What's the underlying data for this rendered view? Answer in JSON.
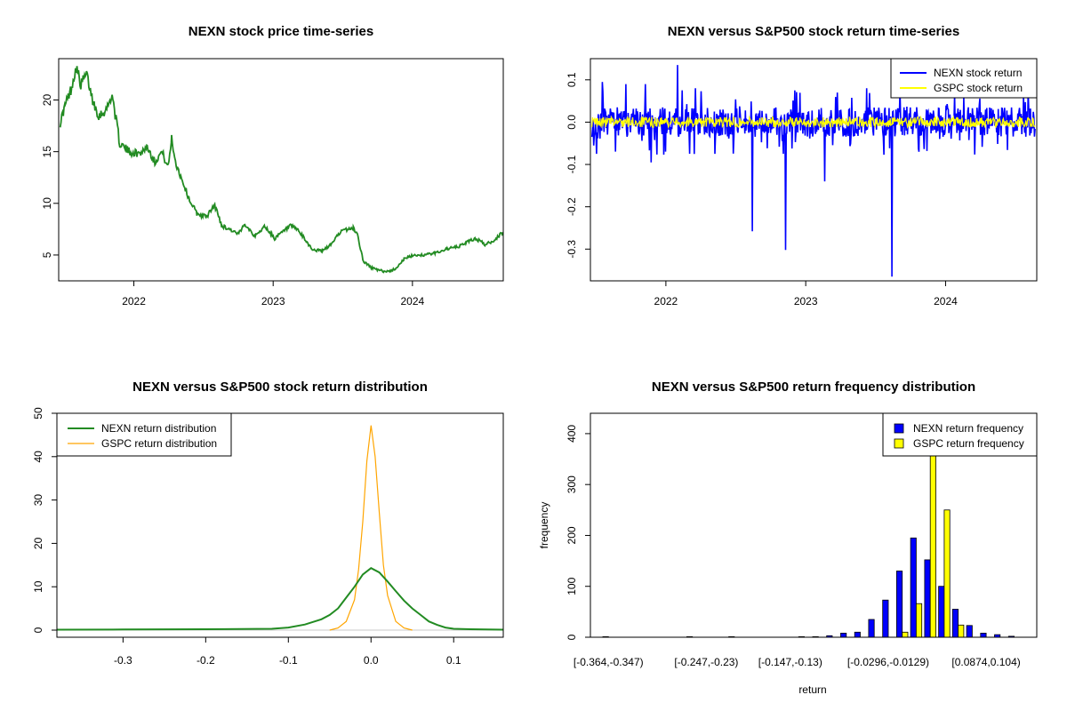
{
  "chart_data": [
    {
      "type": "line",
      "title": "NEXN stock price time-series",
      "xlabel": "",
      "ylabel": "",
      "x_range": [
        "2021-06-18",
        "2024-08-26"
      ],
      "ylim": [
        2.5,
        24
      ],
      "x_tick_labels": [
        "2022",
        "2023",
        "2024"
      ],
      "y_tick_labels": [
        "5",
        "10",
        "15",
        "20"
      ],
      "color": "#228b22",
      "series": [
        {
          "x": [
            "2021-06-22",
            "2021-07-05",
            "2021-07-20",
            "2021-08-03",
            "2021-08-15",
            "2021-08-30",
            "2021-09-15",
            "2021-10-01",
            "2021-10-20",
            "2021-11-05",
            "2021-11-25",
            "2021-12-20",
            "2022-01-15",
            "2022-02-05",
            "2022-02-25",
            "2022-03-15",
            "2022-04-01",
            "2022-04-10",
            "2022-04-20",
            "2022-05-10",
            "2022-05-25",
            "2022-06-15",
            "2022-07-10",
            "2022-08-01",
            "2022-08-20",
            "2022-09-10",
            "2022-10-01",
            "2022-10-20",
            "2022-11-15",
            "2022-12-10",
            "2023-01-05",
            "2023-01-25",
            "2023-02-15",
            "2023-03-05",
            "2023-03-25",
            "2023-04-15",
            "2023-05-10",
            "2023-06-01",
            "2023-06-25",
            "2023-07-15",
            "2023-07-30",
            "2023-08-10",
            "2023-08-25",
            "2023-09-15",
            "2023-10-05",
            "2023-10-25",
            "2023-11-15",
            "2023-12-10",
            "2024-01-05",
            "2024-02-01",
            "2024-03-01",
            "2024-04-01",
            "2024-05-01",
            "2024-05-20",
            "2024-06-15",
            "2024-07-10",
            "2024-08-01",
            "2024-08-25"
          ],
          "y": [
            17.8,
            19.5,
            21.0,
            23.2,
            21.5,
            22.5,
            20.0,
            18.5,
            19.0,
            20.5,
            15.8,
            15.0,
            14.8,
            15.5,
            14.0,
            15.0,
            13.5,
            16.3,
            14.0,
            12.0,
            10.5,
            9.0,
            8.7,
            9.8,
            7.8,
            7.5,
            7.0,
            8.0,
            6.8,
            7.8,
            6.6,
            7.2,
            7.8,
            7.5,
            6.5,
            5.5,
            5.4,
            6.0,
            7.2,
            7.5,
            7.6,
            7.0,
            4.4,
            3.8,
            3.5,
            3.4,
            3.6,
            4.6,
            5.0,
            5.0,
            5.2,
            5.6,
            5.8,
            6.2,
            6.6,
            6.0,
            6.4,
            7.2
          ]
        }
      ]
    },
    {
      "type": "line",
      "title": "NEXN versus S&P500 stock return time-series",
      "xlabel": "",
      "ylabel": "",
      "x_range": [
        "2021-06-18",
        "2024-08-26"
      ],
      "ylim": [
        -0.375,
        0.15
      ],
      "x_tick_labels": [
        "2022",
        "2023",
        "2024"
      ],
      "y_tick_labels": [
        "-0.3",
        "-0.2",
        "-0.1",
        "0.0",
        "0.1"
      ],
      "legend_position": "top-right",
      "legend": [
        "NEXN stock return",
        "GSPC stock return"
      ],
      "series": [
        {
          "name": "NEXN stock return",
          "color": "#0000ff",
          "spikes": [
            {
              "date": "2021-07-20",
              "value": 0.095
            },
            {
              "date": "2021-09-20",
              "value": 0.09
            },
            {
              "date": "2021-11-10",
              "value": 0.09
            },
            {
              "date": "2021-11-25",
              "value": -0.095
            },
            {
              "date": "2022-02-01",
              "value": 0.135
            },
            {
              "date": "2022-03-20",
              "value": 0.08
            },
            {
              "date": "2022-05-10",
              "value": -0.075
            },
            {
              "date": "2022-08-15",
              "value": -0.258
            },
            {
              "date": "2022-11-10",
              "value": -0.302
            },
            {
              "date": "2022-12-05",
              "value": 0.075
            },
            {
              "date": "2023-02-20",
              "value": -0.14
            },
            {
              "date": "2023-03-25",
              "value": 0.07
            },
            {
              "date": "2023-06-10",
              "value": 0.08
            },
            {
              "date": "2023-08-15",
              "value": -0.365
            },
            {
              "date": "2023-09-05",
              "value": 0.075
            },
            {
              "date": "2023-10-25",
              "value": -0.07
            }
          ],
          "typical_amplitude": 0.035
        },
        {
          "name": "GSPC stock return",
          "color": "#ffff00",
          "typical_amplitude": 0.012
        }
      ]
    },
    {
      "type": "line",
      "title": "NEXN versus S&P500 stock return distribution",
      "xlabel": "",
      "ylabel": "",
      "xlim": [
        -0.38,
        0.16
      ],
      "ylim": [
        0,
        50
      ],
      "x_tick_labels": [
        "-0.3",
        "-0.2",
        "-0.1",
        "0.0",
        "0.1"
      ],
      "y_tick_labels": [
        "0",
        "10",
        "20",
        "30",
        "40",
        "50"
      ],
      "legend_position": "top-left",
      "legend": [
        "NEXN return distribution",
        "GSPC return distribution"
      ],
      "series": [
        {
          "name": "NEXN return distribution",
          "color": "#228b22",
          "x": [
            -0.38,
            -0.3,
            -0.2,
            -0.12,
            -0.1,
            -0.08,
            -0.06,
            -0.05,
            -0.04,
            -0.03,
            -0.02,
            -0.01,
            0.0,
            0.01,
            0.02,
            0.03,
            0.04,
            0.05,
            0.06,
            0.07,
            0.08,
            0.09,
            0.1,
            0.12,
            0.16
          ],
          "y": [
            0.1,
            0.15,
            0.2,
            0.3,
            0.6,
            1.3,
            2.5,
            3.5,
            5.0,
            7.5,
            10.0,
            12.8,
            14.3,
            13.3,
            11.2,
            9.0,
            6.8,
            5.0,
            3.5,
            2.0,
            1.2,
            0.6,
            0.3,
            0.2,
            0.1
          ]
        },
        {
          "name": "GSPC return distribution",
          "color": "#ffa500",
          "x": [
            -0.05,
            -0.04,
            -0.03,
            -0.02,
            -0.015,
            -0.01,
            -0.005,
            0.0,
            0.005,
            0.01,
            0.015,
            0.02,
            0.03,
            0.04,
            0.05
          ],
          "y": [
            0,
            0.5,
            2.0,
            7.0,
            14.0,
            25.0,
            39.0,
            47.2,
            40.0,
            27.0,
            15.0,
            8.0,
            2.0,
            0.5,
            0
          ]
        }
      ]
    },
    {
      "type": "bar",
      "title": "NEXN versus S&P500 return frequency distribution",
      "xlabel": "return",
      "ylabel": "frequency",
      "ylim": [
        0,
        440
      ],
      "x_tick_labels": [
        "[-0.364,-0.347)",
        "[-0.247,-0.23)",
        "[-0.147,-0.13)",
        "[-0.0296,-0.0129)",
        "[0.0874,0.104)"
      ],
      "y_tick_labels": [
        "0",
        "100",
        "200",
        "300",
        "400"
      ],
      "legend_position": "top-right",
      "legend": [
        "NEXN return frequency",
        "GSPC return frequency"
      ],
      "categories": [
        "[-0.364,-0.347)",
        "[-0.347,-0.33)",
        "[-0.33,-0.314)",
        "[-0.314,-0.297)",
        "[-0.297,-0.28)",
        "[-0.28,-0.264)",
        "[-0.264,-0.247)",
        "[-0.247,-0.23)",
        "[-0.23,-0.214)",
        "[-0.214,-0.197)",
        "[-0.197,-0.18)",
        "[-0.18,-0.163)",
        "[-0.163,-0.147)",
        "[-0.147,-0.13)",
        "[-0.13,-0.113)",
        "[-0.113,-0.0965)",
        "[-0.0965,-0.0798)",
        "[-0.0798,-0.0631)",
        "[-0.0631,-0.0464)",
        "[-0.0464,-0.0296)",
        "[-0.0296,-0.0129)",
        "[-0.0129,0.00378)",
        "[0.00378,0.0205)",
        "[0.0205,0.0372)",
        "[0.0372,0.054)",
        "[0.054,0.0707)",
        "[0.0707,0.0874)",
        "[0.0874,0.104)",
        "[0.104,0.121)",
        "[0.121,0.138)"
      ],
      "series": [
        {
          "name": "NEXN return frequency",
          "color": "#0000ff",
          "values": [
            1,
            0,
            0,
            0,
            0,
            0,
            1,
            0,
            0,
            1,
            0,
            0,
            0,
            0,
            1,
            1,
            3,
            8,
            10,
            35,
            73,
            130,
            195,
            152,
            100,
            55,
            23,
            8,
            5,
            2
          ]
        },
        {
          "name": "GSPC return frequency",
          "color": "#ffff00",
          "values": [
            0,
            0,
            0,
            0,
            0,
            0,
            0,
            0,
            0,
            0,
            0,
            0,
            0,
            0,
            0,
            0,
            0,
            0,
            0,
            0,
            0,
            10,
            66,
            440,
            250,
            24,
            0,
            0,
            0,
            0
          ]
        }
      ]
    }
  ]
}
